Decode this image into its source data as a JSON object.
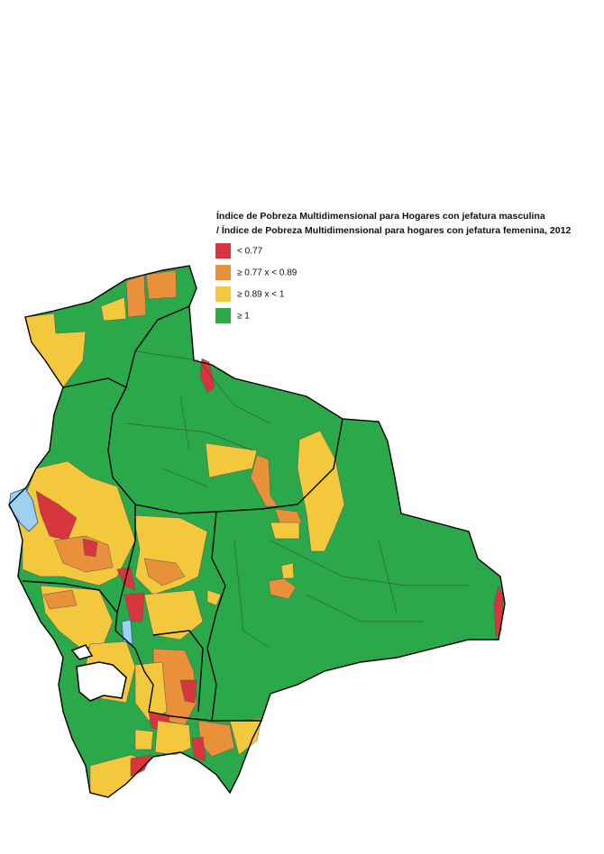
{
  "title": {
    "line1": "Índice de Pobreza Multidimensional para Hogares con jefatura masculina",
    "line2": "/ Índice de Pobreza Multidimensional para hogares con jefatura femenina, 2012"
  },
  "legend": [
    {
      "label": "< 0.77",
      "color": "#d7363f"
    },
    {
      "label": "≥ 0.77 x < 0.89",
      "color": "#e8903a"
    },
    {
      "label": "≥ 0.89 x < 1",
      "color": "#f3c83c"
    },
    {
      "label": "≥ 1",
      "color": "#2aa84a"
    }
  ]
}
